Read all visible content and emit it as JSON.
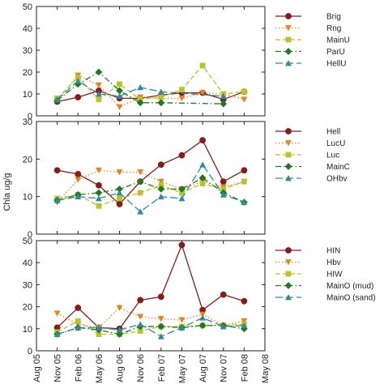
{
  "ylabel": "Chla ug/g",
  "x_ticks": [
    "Aug 05",
    "Nov 05",
    "Feb 06",
    "May 06",
    "Aug 06",
    "Nov 06",
    "Feb 07",
    "May 07",
    "Aug 07",
    "Nov 07",
    "Feb 08",
    "May 08"
  ],
  "chart_data": [
    {
      "type": "line",
      "ylim": [
        0,
        50
      ],
      "yticks": [
        0,
        10,
        20,
        30,
        40,
        50
      ],
      "x_categories": [
        "Aug 05",
        "Nov 05",
        "Feb 06",
        "May 06",
        "Aug 06",
        "Nov 06",
        "Feb 07",
        "May 07",
        "Aug 07",
        "Nov 07",
        "Feb 08",
        "May 08"
      ],
      "grid": false,
      "legend_position": "top-right",
      "series": [
        {
          "name": "Brig",
          "color": "#8b1a1a",
          "dash": "solid",
          "marker": "circle",
          "points": [
            [
              "Nov 05",
              6.5
            ],
            [
              "Feb 06",
              8.5
            ],
            [
              "May 06",
              11.5
            ],
            [
              "Aug 06",
              8.0
            ],
            [
              "Nov 06",
              8.0
            ],
            [
              "Feb 07",
              9.5
            ],
            [
              "May 07",
              10.5
            ],
            [
              "Aug 07",
              10.5
            ],
            [
              "Nov 07",
              7.5
            ],
            [
              "Feb 08",
              11.0
            ]
          ]
        },
        {
          "name": "Rng",
          "color": "#e8821e",
          "dash": "dotted",
          "marker": "triangle-down",
          "points": [
            [
              "Nov 05",
              7.0
            ],
            [
              "Feb 06",
              18.5
            ],
            [
              "May 06",
              14.0
            ],
            [
              "Aug 06",
              4.0
            ],
            [
              "Nov 06",
              8.5
            ],
            [
              "Feb 07",
              8.0
            ],
            [
              "May 07",
              8.0
            ],
            [
              "Aug 07",
              10.5
            ],
            [
              "Nov 07",
              10.0
            ],
            [
              "Feb 08",
              7.5
            ]
          ]
        },
        {
          "name": "MainU",
          "color": "#b8c42a",
          "dash": "dashed",
          "marker": "square",
          "points": [
            [
              "Nov 05",
              8.0
            ],
            [
              "Feb 06",
              17.5
            ],
            [
              "May 06",
              7.5
            ],
            [
              "Aug 06",
              14.5
            ],
            [
              "Nov 06",
              7.5
            ],
            [
              "Feb 07",
              8.5
            ],
            [
              "May 07",
              12.0
            ],
            [
              "Aug 07",
              23.0
            ],
            [
              "Nov 07",
              10.0
            ],
            [
              "Feb 08",
              11.0
            ]
          ]
        },
        {
          "name": "ParU",
          "color": "#1f7a1f",
          "dash": "dashdot",
          "marker": "diamond",
          "points": [
            [
              "Nov 05",
              7.0
            ],
            [
              "Feb 06",
              14.5
            ],
            [
              "May 06",
              20.0
            ],
            [
              "Aug 06",
              11.5
            ],
            [
              "Nov 06",
              6.0
            ],
            [
              "Feb 07",
              6.0
            ],
            [
              "Nov 07",
              5.5
            ]
          ]
        },
        {
          "name": "HellU",
          "color": "#2e8b9a",
          "dash": "longdash",
          "marker": "triangle-up",
          "points": [
            [
              "Nov 05",
              7.5
            ],
            [
              "Feb 06",
              16.0
            ],
            [
              "May 06",
              10.0
            ],
            [
              "Aug 06",
              9.0
            ],
            [
              "Nov 06",
              13.0
            ],
            [
              "Feb 07",
              11.0
            ],
            [
              "Nov 07",
              9.0
            ]
          ]
        }
      ]
    },
    {
      "type": "line",
      "ylim": [
        0,
        30
      ],
      "yticks": [
        0,
        10,
        20,
        30
      ],
      "x_categories": [
        "Aug 05",
        "Nov 05",
        "Feb 06",
        "May 06",
        "Aug 06",
        "Nov 06",
        "Feb 07",
        "May 07",
        "Aug 07",
        "Nov 07",
        "Feb 08",
        "May 08"
      ],
      "grid": false,
      "legend_position": "top-right",
      "series": [
        {
          "name": "Hell",
          "color": "#8b1a1a",
          "dash": "solid",
          "marker": "circle",
          "points": [
            [
              "Nov 05",
              17.0
            ],
            [
              "Feb 06",
              16.0
            ],
            [
              "May 06",
              13.0
            ],
            [
              "Aug 06",
              8.0
            ],
            [
              "Nov 06",
              14.0
            ],
            [
              "Feb 07",
              18.5
            ],
            [
              "May 07",
              21.0
            ],
            [
              "Aug 07",
              25.0
            ],
            [
              "Nov 07",
              14.0
            ],
            [
              "Feb 08",
              17.0
            ]
          ]
        },
        {
          "name": "LucU",
          "color": "#e8821e",
          "dash": "dotted",
          "marker": "triangle-down",
          "points": [
            [
              "Nov 05",
              8.5
            ],
            [
              "Feb 06",
              14.5
            ],
            [
              "May 06",
              17.0
            ],
            [
              "Aug 06",
              16.5
            ],
            [
              "Nov 06",
              16.5
            ],
            [
              "Feb 07",
              14.0
            ],
            [
              "May 07",
              12.0
            ],
            [
              "Aug 07",
              14.0
            ],
            [
              "Nov 07",
              12.5
            ],
            [
              "Feb 08",
              14.0
            ]
          ]
        },
        {
          "name": "Luc",
          "color": "#b8c42a",
          "dash": "dashed",
          "marker": "square",
          "points": [
            [
              "Nov 05",
              9.5
            ],
            [
              "Feb 06",
              10.5
            ],
            [
              "May 06",
              7.5
            ],
            [
              "Aug 06",
              9.5
            ],
            [
              "Nov 06",
              11.0
            ],
            [
              "Feb 07",
              13.0
            ],
            [
              "May 07",
              11.0
            ],
            [
              "Aug 07",
              13.5
            ],
            [
              "Nov 07",
              12.0
            ],
            [
              "Feb 08",
              14.0
            ]
          ]
        },
        {
          "name": "MainC",
          "color": "#1f7a1f",
          "dash": "dashdot",
          "marker": "diamond",
          "points": [
            [
              "Nov 05",
              9.0
            ],
            [
              "Feb 06",
              10.5
            ],
            [
              "May 06",
              11.0
            ],
            [
              "Aug 06",
              12.0
            ],
            [
              "Nov 06",
              14.0
            ],
            [
              "Feb 07",
              12.0
            ],
            [
              "May 07",
              12.0
            ],
            [
              "Aug 07",
              15.0
            ],
            [
              "Nov 07",
              11.0
            ],
            [
              "Feb 08",
              8.5
            ]
          ]
        },
        {
          "name": "OHbv",
          "color": "#2e8b9a",
          "dash": "longdash",
          "marker": "triangle-up",
          "points": [
            [
              "Nov 05",
              9.0
            ],
            [
              "Feb 06",
              10.0
            ],
            [
              "May 06",
              9.5
            ],
            [
              "Aug 06",
              11.0
            ],
            [
              "Nov 06",
              6.0
            ],
            [
              "Feb 07",
              10.0
            ],
            [
              "May 07",
              9.5
            ],
            [
              "Aug 07",
              18.5
            ],
            [
              "Nov 07",
              10.5
            ],
            [
              "Feb 08",
              8.5
            ]
          ]
        }
      ]
    },
    {
      "type": "line",
      "ylim": [
        0,
        50
      ],
      "yticks": [
        0,
        10,
        20,
        30,
        40,
        50
      ],
      "x_categories": [
        "Aug 05",
        "Nov 05",
        "Feb 06",
        "May 06",
        "Aug 06",
        "Nov 06",
        "Feb 07",
        "May 07",
        "Aug 07",
        "Nov 07",
        "Feb 08",
        "May 08"
      ],
      "xlim": [
        "Aug 05",
        "May 08"
      ],
      "grid": false,
      "legend_position": "top-right",
      "series": [
        {
          "name": "HIN",
          "color": "#8b1a1a",
          "dash": "solid",
          "marker": "circle",
          "points": [
            [
              "Nov 05",
              10.5
            ],
            [
              "Feb 06",
              19.5
            ],
            [
              "May 06",
              10.5
            ],
            [
              "Aug 06",
              10.0
            ],
            [
              "Nov 06",
              23.0
            ],
            [
              "Feb 07",
              24.5
            ],
            [
              "May 07",
              48.0
            ],
            [
              "Aug 07",
              18.5
            ],
            [
              "Nov 07",
              25.5
            ],
            [
              "Feb 08",
              22.5
            ]
          ]
        },
        {
          "name": "Hbv",
          "color": "#e8821e",
          "dash": "dotted",
          "marker": "triangle-down",
          "points": [
            [
              "Nov 05",
              17.0
            ],
            [
              "Feb 06",
              12.0
            ],
            [
              "May 06",
              10.5
            ],
            [
              "Aug 06",
              19.5
            ],
            [
              "Nov 06",
              15.5
            ],
            [
              "Feb 07",
              14.5
            ],
            [
              "May 07",
              14.0
            ],
            [
              "Aug 07",
              16.5
            ],
            [
              "Nov 07",
              11.5
            ],
            [
              "Feb 08",
              13.5
            ]
          ]
        },
        {
          "name": "HIW",
          "color": "#b8c42a",
          "dash": "dashed",
          "marker": "square",
          "points": [
            [
              "Nov 05",
              8.5
            ],
            [
              "Feb 06",
              13.5
            ],
            [
              "May 06",
              7.5
            ],
            [
              "Aug 06",
              7.5
            ],
            [
              "Nov 06",
              9.0
            ],
            [
              "Feb 07",
              11.0
            ],
            [
              "May 07",
              11.0
            ],
            [
              "Aug 07",
              11.5
            ],
            [
              "Nov 07",
              11.5
            ],
            [
              "Feb 08",
              12.0
            ]
          ]
        },
        {
          "name": "MainO (mud)",
          "color": "#1f7a1f",
          "dash": "dashdot",
          "marker": "diamond",
          "points": [
            [
              "Nov 05",
              7.5
            ],
            [
              "Feb 06",
              10.5
            ],
            [
              "May 06",
              9.5
            ],
            [
              "Aug 06",
              7.5
            ],
            [
              "Nov 06",
              11.0
            ],
            [
              "Feb 07",
              11.0
            ],
            [
              "May 07",
              10.5
            ],
            [
              "Aug 07",
              11.5
            ],
            [
              "Nov 07",
              11.5
            ],
            [
              "Feb 08",
              10.0
            ]
          ]
        },
        {
          "name": "MainO (sand)",
          "color": "#2e8b9a",
          "dash": "longdash",
          "marker": "triangle-up",
          "points": [
            [
              "Nov 05",
              7.5
            ],
            [
              "Feb 06",
              10.5
            ],
            [
              "May 06",
              10.5
            ],
            [
              "Aug 06",
              9.5
            ],
            [
              "Nov 06",
              12.0
            ],
            [
              "Feb 07",
              6.5
            ],
            [
              "May 07",
              10.5
            ],
            [
              "Aug 07",
              15.0
            ],
            [
              "Nov 07",
              11.0
            ],
            [
              "Feb 08",
              11.5
            ]
          ]
        }
      ]
    }
  ]
}
